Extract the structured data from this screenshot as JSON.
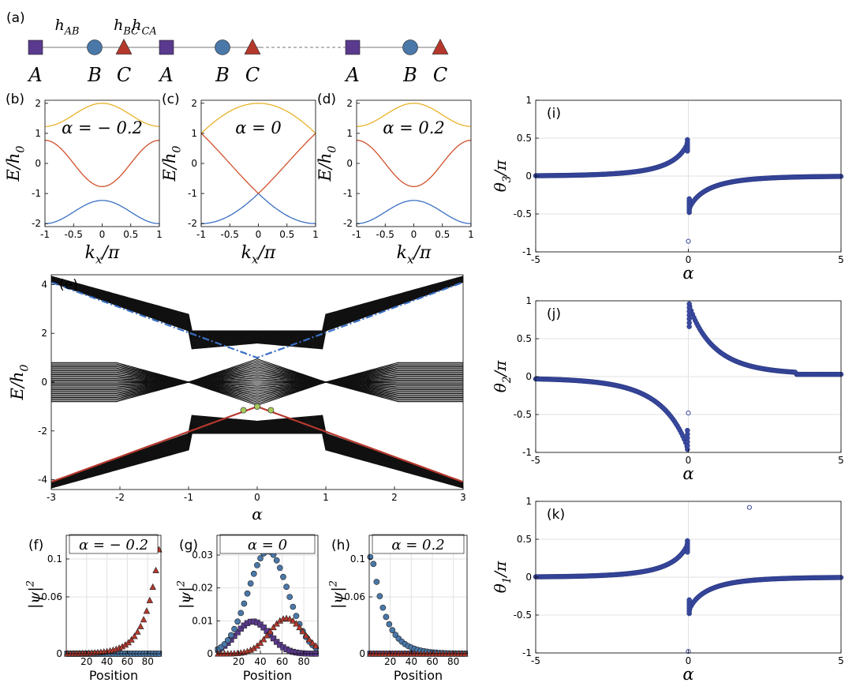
{
  "colors": {
    "purple": "#5a3a8e",
    "blue": "#4a78a8",
    "red": "#b5382c",
    "yellow": "#e8b22a",
    "orange": "#d0502a",
    "bandblue": "#3a6fc4",
    "thetablue": "#3a4aa0",
    "black": "#111111"
  },
  "chain": {
    "panel_label": "(a)",
    "hoppings": [
      "h_{AB}",
      "h_{BC}",
      "h_{CA}"
    ],
    "sites": [
      {
        "name": "A",
        "shape": "square"
      },
      {
        "name": "B",
        "shape": "circle"
      },
      {
        "name": "C",
        "shape": "triangle"
      },
      {
        "name": "A",
        "shape": "square"
      },
      {
        "name": "B",
        "shape": "circle"
      },
      {
        "name": "C",
        "shape": "triangle"
      },
      {
        "name": "A",
        "shape": "square"
      },
      {
        "name": "B",
        "shape": "circle"
      },
      {
        "name": "C",
        "shape": "triangle"
      }
    ]
  },
  "chart_data": [
    {
      "id": "b",
      "label": "(b)",
      "type": "line",
      "annotation": "α = − 0.2",
      "alpha": -0.2,
      "xlabel": "k_x/π",
      "ylabel": "E/h_0",
      "xlim": [
        -1,
        1
      ],
      "ylim": [
        -2.1,
        2.1
      ],
      "xticks": [
        "-1",
        "-0.5",
        "0",
        "0.5",
        "1"
      ],
      "yticks": [
        "-2",
        "-1",
        "0",
        "1",
        "2"
      ],
      "series": [
        {
          "values_at": {
            "k=-1": -2.0,
            "k=0": -1.23,
            "k=1": -2.0
          }
        },
        {
          "values_at": {
            "k=-1": 0.77,
            "k=0": -0.77,
            "k=1": 0.77
          }
        },
        {
          "values_at": {
            "k=-1": 1.23,
            "k=0": 2.0,
            "k=1": 1.23
          }
        }
      ]
    },
    {
      "id": "c",
      "label": "(c)",
      "type": "line",
      "annotation": "α = 0",
      "alpha": 0,
      "xlabel": "k_x/π",
      "ylabel": "E/h_0",
      "xlim": [
        -1,
        1
      ],
      "ylim": [
        -2.1,
        2.1
      ],
      "xticks": [
        "-1",
        "-0.5",
        "0",
        "0.5",
        "1"
      ],
      "yticks": [
        "-2",
        "-1",
        "0",
        "1",
        "2"
      ],
      "series": [
        {
          "values_at": {
            "k=-1": -2.0,
            "k=0": -1.0,
            "k=1": -2.0
          }
        },
        {
          "values_at": {
            "k=-1": 1.0,
            "k=0": -1.0,
            "k=1": 1.0
          }
        },
        {
          "values_at": {
            "k=-1": 1.0,
            "k=0": 2.0,
            "k=1": 1.0
          }
        }
      ]
    },
    {
      "id": "d",
      "label": "(d)",
      "type": "line",
      "annotation": "α = 0.2",
      "alpha": 0.2,
      "xlabel": "k_x/π",
      "ylabel": "E/h_0",
      "xlim": [
        -1,
        1
      ],
      "ylim": [
        -2.1,
        2.1
      ],
      "xticks": [
        "-1",
        "-0.5",
        "0",
        "0.5",
        "1"
      ],
      "yticks": [
        "-2",
        "-1",
        "0",
        "1",
        "2"
      ],
      "series": [
        {
          "values_at": {
            "k=-1": -2.0,
            "k=0": -1.23,
            "k=1": -2.0
          }
        },
        {
          "values_at": {
            "k=-1": 0.77,
            "k=0": -0.77,
            "k=1": 0.77
          }
        },
        {
          "values_at": {
            "k=-1": 1.23,
            "k=0": 2.0,
            "k=1": 1.23
          }
        }
      ]
    },
    {
      "id": "e",
      "label": "(e)",
      "type": "line",
      "xlabel": "α",
      "ylabel": "E/h_0",
      "xlim": [
        -3,
        3
      ],
      "ylim": [
        -4.4,
        4.4
      ],
      "xticks": [
        "-3",
        "-2",
        "-1",
        "0",
        "1",
        "2",
        "3"
      ],
      "yticks": [
        "-4",
        "-2",
        "0",
        "2",
        "4"
      ],
      "edge_states": [
        {
          "color": "blue",
          "style": "dash-dot",
          "points": [
            [
              -3,
              4.1
            ],
            [
              -1,
              2.1
            ],
            [
              0,
              1.0
            ],
            [
              1,
              2.1
            ],
            [
              3,
              4.1
            ]
          ]
        },
        {
          "color": "red",
          "style": "solid",
          "points": [
            [
              -3,
              -4.1
            ],
            [
              -1,
              -2.1
            ],
            [
              0,
              -1.0
            ],
            [
              1,
              -2.1
            ],
            [
              3,
              -4.1
            ]
          ]
        }
      ],
      "markers": [
        [
          -0.2,
          -1.15
        ],
        [
          0,
          -1.0
        ],
        [
          0.2,
          -1.15
        ]
      ]
    },
    {
      "id": "f",
      "label": "(f)",
      "type": "scatter",
      "annotation": "α = − 0.2",
      "xlabel": "Position",
      "ylabel": "|ψ|^2",
      "xlim": [
        0,
        93
      ],
      "ylim": [
        0,
        0.125
      ],
      "xticks": [
        "20",
        "40",
        "60",
        "80"
      ],
      "yticks": [
        "0",
        "0.06",
        "0.1"
      ],
      "series": [
        {
          "site": "A",
          "peak": 0.0
        },
        {
          "site": "B",
          "peak": 0.0
        },
        {
          "site": "C",
          "peak_at_position": 91,
          "peak": 0.11,
          "decay": 0.87
        }
      ]
    },
    {
      "id": "g",
      "label": "(g)",
      "type": "scatter",
      "annotation": "α = 0",
      "xlabel": "Position",
      "ylabel": "|ψ|^2",
      "xlim": [
        0,
        93
      ],
      "ylim": [
        0,
        0.036
      ],
      "xticks": [
        "20",
        "40",
        "60",
        "80"
      ],
      "yticks": [
        "0",
        "0.01",
        "0.02",
        "0.03"
      ],
      "series": [
        {
          "site": "A",
          "peak_at_position": 33,
          "peak": 0.0098
        },
        {
          "site": "B",
          "peak_at_position": 47,
          "peak": 0.0312
        },
        {
          "site": "C",
          "peak_at_position": 64,
          "peak": 0.0108
        }
      ]
    },
    {
      "id": "h",
      "label": "(h)",
      "type": "scatter",
      "annotation": "α = 0.2",
      "xlabel": "Position",
      "ylabel": "|ψ|^2",
      "xlim": [
        0,
        93
      ],
      "ylim": [
        0,
        0.125
      ],
      "xticks": [
        "20",
        "40",
        "60",
        "80"
      ],
      "yticks": [
        "0",
        "0.06",
        "0.1"
      ],
      "series": [
        {
          "site": "A",
          "peak": 0.0
        },
        {
          "site": "B",
          "peak_at_position": 2,
          "peak": 0.11,
          "decay": 0.87
        },
        {
          "site": "C",
          "peak": 0.0
        }
      ]
    },
    {
      "id": "i",
      "label": "(i)",
      "type": "scatter",
      "xlabel": "α",
      "ylabel": "θ_3/π",
      "xlim": [
        -5,
        5
      ],
      "ylim": [
        -1,
        1
      ],
      "xticks": [
        "-5",
        "0",
        "5"
      ],
      "yticks": [
        "-1",
        "-0.5",
        "0",
        "0.5",
        "1"
      ],
      "curve": "left: 0 → 0.48 at α→0⁻; right: -0.48 → 0",
      "outliers": [
        [
          0,
          -0.86
        ]
      ]
    },
    {
      "id": "j",
      "label": "(j)",
      "type": "scatter",
      "xlabel": "α",
      "ylabel": "θ_2/π",
      "xlim": [
        -5,
        5
      ],
      "ylim": [
        -1,
        1
      ],
      "xticks": [
        "-5",
        "0",
        "5"
      ],
      "yticks": [
        "-1",
        "-0.5",
        "0",
        "0.5",
        "1"
      ],
      "curve": "left: -0.02 → -0.96 at α→0⁻; right: 0.96 → 0.03",
      "outliers": [
        [
          0,
          -0.48
        ]
      ]
    },
    {
      "id": "k",
      "label": "(k)",
      "type": "scatter",
      "xlabel": "α",
      "ylabel": "θ_1/π",
      "xlim": [
        -5,
        5
      ],
      "ylim": [
        -1,
        1
      ],
      "xticks": [
        "-5",
        "0",
        "5"
      ],
      "yticks": [
        "-1",
        "-0.5",
        "0",
        "0.5",
        "1"
      ],
      "curve": "left: 0 → 0.48 at α→0⁻; right: -0.48 → 0",
      "outliers": [
        [
          0,
          -0.98
        ],
        [
          2,
          0.92
        ]
      ]
    }
  ]
}
